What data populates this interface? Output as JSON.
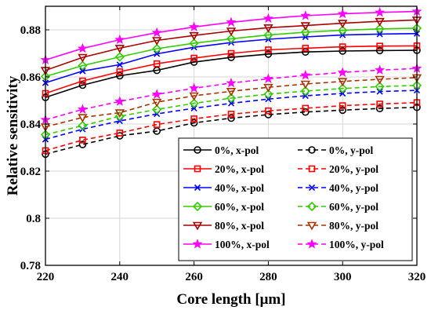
{
  "chart_data": {
    "type": "line",
    "xlabel": "Core length [μm]",
    "ylabel": "Relative sensitivity",
    "xlim": [
      220,
      320
    ],
    "ylim": [
      0.78,
      0.89
    ],
    "xticks": [
      220,
      240,
      260,
      280,
      300,
      320
    ],
    "yticks": [
      0.78,
      0.8,
      0.82,
      0.84,
      0.86,
      0.88
    ],
    "ytick_labels": [
      "0.78",
      "0.8",
      "0.82",
      "0.84",
      "0.86",
      "0.88"
    ],
    "grid": true,
    "legend_position": "bottom-center",
    "x": [
      220,
      230,
      240,
      250,
      260,
      270,
      280,
      290,
      300,
      310,
      320
    ],
    "series": [
      {
        "name": "0%, x-pol",
        "color": "#000000",
        "dashed": false,
        "marker": "circle",
        "values": [
          0.8513,
          0.8565,
          0.8605,
          0.8628,
          0.8663,
          0.8683,
          0.8697,
          0.8706,
          0.871,
          0.8712,
          0.8713
        ]
      },
      {
        "name": "20%, x-pol",
        "color": "#ff0000",
        "dashed": false,
        "marker": "square",
        "values": [
          0.853,
          0.8583,
          0.8622,
          0.8656,
          0.868,
          0.87,
          0.8715,
          0.8722,
          0.8728,
          0.8731,
          0.8732
        ]
      },
      {
        "name": "40%, x-pol",
        "color": "#0000ff",
        "dashed": false,
        "marker": "x",
        "values": [
          0.8575,
          0.8625,
          0.8652,
          0.8698,
          0.8726,
          0.8746,
          0.876,
          0.877,
          0.8778,
          0.8782,
          0.8784
        ]
      },
      {
        "name": "60%, x-pol",
        "color": "#33cc00",
        "dashed": false,
        "marker": "diamond",
        "values": [
          0.8602,
          0.8648,
          0.8685,
          0.872,
          0.8743,
          0.8762,
          0.8778,
          0.879,
          0.8798,
          0.8804,
          0.8807
        ]
      },
      {
        "name": "80%, x-pol",
        "color": "#aa0000",
        "dashed": false,
        "marker": "triangle-down",
        "values": [
          0.8628,
          0.8683,
          0.8722,
          0.8755,
          0.8776,
          0.8795,
          0.8809,
          0.8818,
          0.8828,
          0.8836,
          0.8842
        ]
      },
      {
        "name": "100%, x-pol",
        "color": "#ff00ff",
        "dashed": false,
        "marker": "star",
        "values": [
          0.8672,
          0.8721,
          0.8758,
          0.8788,
          0.8812,
          0.8832,
          0.8848,
          0.886,
          0.8868,
          0.8874,
          0.8878
        ]
      },
      {
        "name": "0%, y-pol",
        "color": "#000000",
        "dashed": true,
        "marker": "circle",
        "values": [
          0.8272,
          0.8313,
          0.835,
          0.837,
          0.8405,
          0.8425,
          0.844,
          0.8451,
          0.8459,
          0.8466,
          0.8471
        ]
      },
      {
        "name": "20%, y-pol",
        "color": "#ff0000",
        "dashed": true,
        "marker": "square",
        "values": [
          0.8287,
          0.8332,
          0.8362,
          0.8398,
          0.8422,
          0.8442,
          0.8456,
          0.8467,
          0.8478,
          0.8485,
          0.8491
        ]
      },
      {
        "name": "40%, y-pol",
        "color": "#0000ff",
        "dashed": true,
        "marker": "x",
        "values": [
          0.8335,
          0.8378,
          0.8413,
          0.8443,
          0.8467,
          0.8488,
          0.8506,
          0.852,
          0.853,
          0.8538,
          0.8543
        ]
      },
      {
        "name": "60%, y-pol",
        "color": "#33cc00",
        "dashed": true,
        "marker": "diamond",
        "values": [
          0.8355,
          0.8393,
          0.8433,
          0.8462,
          0.8488,
          0.851,
          0.8527,
          0.854,
          0.8551,
          0.8559,
          0.8564
        ]
      },
      {
        "name": "80%, y-pol",
        "color": "#aa3300",
        "dashed": true,
        "marker": "triangle-down",
        "values": [
          0.8388,
          0.8428,
          0.8448,
          0.8493,
          0.852,
          0.8539,
          0.8556,
          0.857,
          0.8581,
          0.859,
          0.8597
        ]
      },
      {
        "name": "100%, y-pol",
        "color": "#ff00ff",
        "dashed": true,
        "marker": "star",
        "values": [
          0.8418,
          0.8462,
          0.8496,
          0.8526,
          0.8552,
          0.8574,
          0.8592,
          0.8607,
          0.8619,
          0.8629,
          0.8636
        ]
      }
    ]
  }
}
